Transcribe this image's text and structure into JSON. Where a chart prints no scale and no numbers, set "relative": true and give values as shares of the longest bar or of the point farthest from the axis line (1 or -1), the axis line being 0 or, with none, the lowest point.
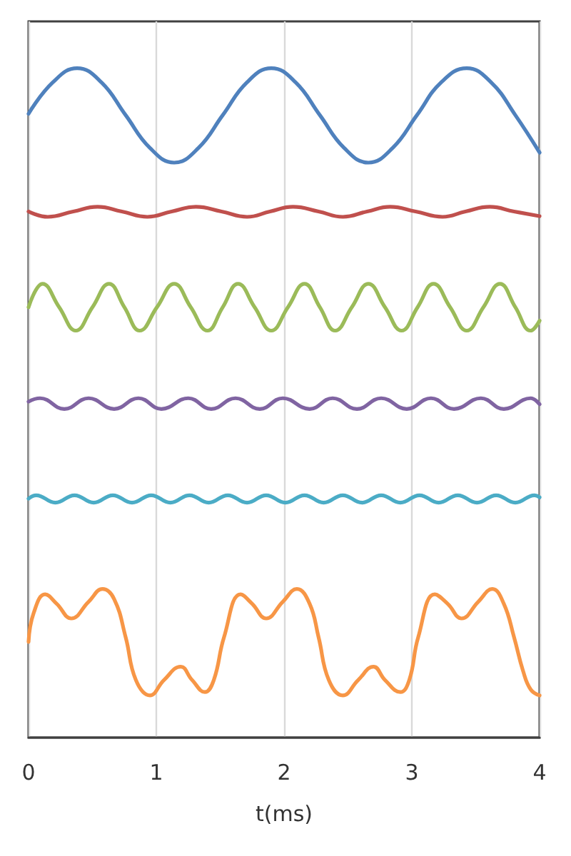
{
  "chart_data": {
    "type": "line",
    "xlabel": "t(ms)",
    "relative": true,
    "grid": "x",
    "xlim": [
      0,
      4
    ],
    "xticks": [
      0,
      1,
      2,
      3,
      4
    ],
    "series": [
      {
        "color": "#4f81bd",
        "x": [
          0,
          0.19,
          0.38,
          0.57,
          0.76,
          0.95,
          1.14,
          1.33,
          1.52,
          1.71,
          1.9,
          2.09,
          2.28,
          2.47,
          2.66,
          2.85,
          3.04,
          3.23,
          3.43,
          3.62,
          3.81,
          4
        ],
        "values": [
          0.932,
          0.979,
          1,
          0.979,
          0.93,
          0.881,
          0.859,
          0.881,
          0.93,
          0.979,
          1,
          0.979,
          0.93,
          0.881,
          0.859,
          0.881,
          0.93,
          0.979,
          1,
          0.979,
          0.93,
          0.874
        ]
      },
      {
        "color": "#c0504d",
        "x": [
          0,
          0.15,
          0.35,
          0.54,
          0.73,
          0.93,
          1.12,
          1.31,
          1.51,
          1.71,
          1.89,
          2.07,
          2.27,
          2.46,
          2.65,
          2.83,
          3.03,
          3.24,
          3.42,
          3.61,
          3.8,
          4
        ],
        "values": [
          0.786,
          0.778,
          0.786,
          0.793,
          0.786,
          0.778,
          0.786,
          0.793,
          0.786,
          0.778,
          0.786,
          0.793,
          0.786,
          0.778,
          0.786,
          0.793,
          0.786,
          0.778,
          0.786,
          0.793,
          0.786,
          0.779
        ]
      },
      {
        "color": "#9bbb59",
        "x": [
          0,
          0.11,
          0.24,
          0.37,
          0.5,
          0.63,
          0.75,
          0.87,
          1.005,
          1.14,
          1.27,
          1.4,
          1.52,
          1.64,
          1.77,
          1.9,
          2.03,
          2.16,
          2.28,
          2.4,
          2.53,
          2.66,
          2.79,
          2.92,
          3.045,
          3.17,
          3.3,
          3.43,
          3.56,
          3.69,
          3.81,
          3.93,
          4
        ],
        "values": [
          0.643,
          0.678,
          0.643,
          0.608,
          0.643,
          0.678,
          0.643,
          0.608,
          0.643,
          0.678,
          0.643,
          0.608,
          0.643,
          0.678,
          0.643,
          0.608,
          0.643,
          0.678,
          0.643,
          0.608,
          0.643,
          0.678,
          0.643,
          0.608,
          0.643,
          0.678,
          0.643,
          0.608,
          0.643,
          0.678,
          0.643,
          0.608,
          0.623
        ]
      },
      {
        "color": "#8064a2",
        "x": [
          0,
          0.09,
          0.28,
          0.47,
          0.67,
          0.86,
          1.04,
          1.25,
          1.43,
          1.62,
          1.81,
          1.99,
          2.2,
          2.38,
          2.57,
          2.76,
          2.96,
          3.15,
          3.33,
          3.54,
          3.72,
          3.93,
          4
        ],
        "values": [
          0.502,
          0.507,
          0.491,
          0.507,
          0.491,
          0.507,
          0.491,
          0.507,
          0.491,
          0.507,
          0.491,
          0.507,
          0.491,
          0.507,
          0.491,
          0.507,
          0.491,
          0.507,
          0.491,
          0.507,
          0.491,
          0.507,
          0.498
        ]
      },
      {
        "color": "#4bacc6",
        "x": [
          0,
          0.06,
          0.21,
          0.36,
          0.51,
          0.66,
          0.81,
          0.96,
          1.11,
          1.26,
          1.41,
          1.56,
          1.71,
          1.86,
          2.01,
          2.16,
          2.31,
          2.46,
          2.61,
          2.76,
          2.91,
          3.06,
          3.21,
          3.36,
          3.51,
          3.66,
          3.81,
          3.96,
          4
        ],
        "values": [
          0.357,
          0.362,
          0.351,
          0.362,
          0.351,
          0.362,
          0.351,
          0.362,
          0.351,
          0.362,
          0.351,
          0.362,
          0.351,
          0.362,
          0.351,
          0.362,
          0.351,
          0.362,
          0.351,
          0.362,
          0.351,
          0.362,
          0.351,
          0.362,
          0.351,
          0.362,
          0.351,
          0.362,
          0.359
        ]
      },
      {
        "color": "#f79646",
        "x": [
          0,
          0.04,
          0.13,
          0.22,
          0.335,
          0.47,
          0.58,
          0.67,
          0.76,
          0.84,
          0.95,
          1.06,
          1.19,
          1.28,
          1.38,
          1.45,
          1.53,
          1.66,
          1.75,
          1.86,
          1.99,
          2.1,
          2.2,
          2.27,
          2.35,
          2.46,
          2.58,
          2.7,
          2.79,
          2.91,
          2.98,
          3.05,
          3.18,
          3.28,
          3.39,
          3.52,
          3.63,
          3.72,
          3.8,
          3.87,
          3.93,
          4
        ],
        "values": [
          0.143,
          0.186,
          0.214,
          0.2,
          0.178,
          0.203,
          0.222,
          0.207,
          0.15,
          0.086,
          0.063,
          0.086,
          0.106,
          0.086,
          0.068,
          0.086,
          0.15,
          0.214,
          0.2,
          0.178,
          0.203,
          0.222,
          0.2,
          0.15,
          0.086,
          0.063,
          0.086,
          0.106,
          0.086,
          0.068,
          0.086,
          0.15,
          0.214,
          0.2,
          0.178,
          0.203,
          0.222,
          0.2,
          0.15,
          0.1,
          0.072,
          0.063
        ]
      }
    ]
  }
}
